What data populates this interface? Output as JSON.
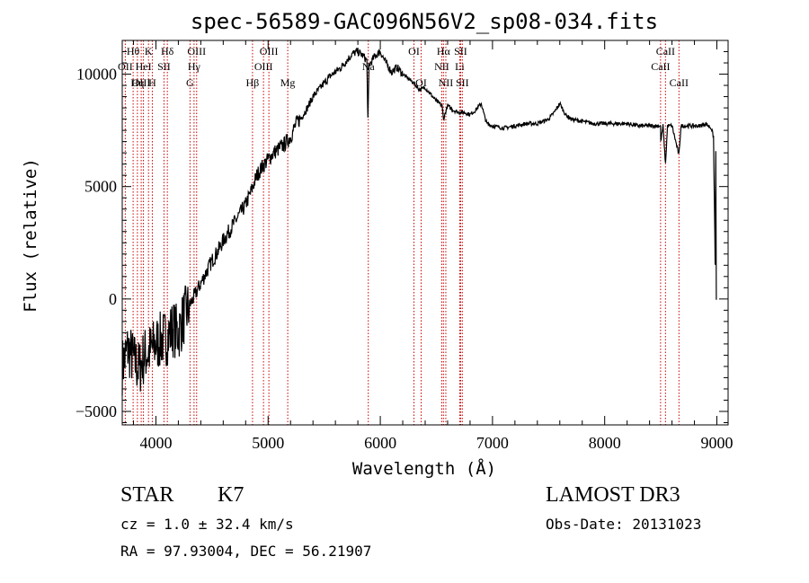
{
  "chart_data": {
    "type": "line",
    "title": "spec-56589-GAC096N56V2_sp08-034.fits",
    "xlabel": "Wavelength (Å)",
    "ylabel": "Flux (relative)",
    "xlim": [
      3700,
      9100
    ],
    "ylim": [
      -5600,
      11500
    ],
    "xticks": [
      4000,
      5000,
      6000,
      7000,
      8000,
      9000
    ],
    "xtick_labels": [
      "4000",
      "5000",
      "6000",
      "7000",
      "8000",
      "9000"
    ],
    "yticks": [
      -5000,
      0,
      5000,
      10000
    ],
    "ytick_labels": [
      "−5000",
      "0",
      "5000",
      "10000"
    ],
    "series": [
      {
        "name": "flux",
        "points": [
          [
            3700,
            -3000
          ],
          [
            3750,
            -2200
          ],
          [
            3800,
            -2700
          ],
          [
            3850,
            -3100
          ],
          [
            3900,
            -2500
          ],
          [
            3950,
            -2300
          ],
          [
            4000,
            -2000
          ],
          [
            4050,
            -1800
          ],
          [
            4100,
            -1700
          ],
          [
            4150,
            -1300
          ],
          [
            4200,
            -1500
          ],
          [
            4250,
            -800
          ],
          [
            4300,
            -300
          ],
          [
            4350,
            200
          ],
          [
            4400,
            700
          ],
          [
            4450,
            1200
          ],
          [
            4500,
            1700
          ],
          [
            4550,
            2100
          ],
          [
            4600,
            2600
          ],
          [
            4650,
            3000
          ],
          [
            4700,
            3400
          ],
          [
            4750,
            3800
          ],
          [
            4800,
            4200
          ],
          [
            4850,
            4800
          ],
          [
            4900,
            5500
          ],
          [
            4950,
            5900
          ],
          [
            5000,
            6200
          ],
          [
            5050,
            6500
          ],
          [
            5100,
            6700
          ],
          [
            5150,
            6900
          ],
          [
            5200,
            7200
          ],
          [
            5250,
            7800
          ],
          [
            5300,
            8100
          ],
          [
            5350,
            8500
          ],
          [
            5400,
            9000
          ],
          [
            5450,
            9300
          ],
          [
            5500,
            9600
          ],
          [
            5550,
            9900
          ],
          [
            5600,
            10100
          ],
          [
            5650,
            10300
          ],
          [
            5700,
            10600
          ],
          [
            5750,
            10900
          ],
          [
            5800,
            11000
          ],
          [
            5850,
            10800
          ],
          [
            5880,
            10600
          ],
          [
            5890,
            8000
          ],
          [
            5900,
            10400
          ],
          [
            5950,
            10800
          ],
          [
            6000,
            11000
          ],
          [
            6050,
            10500
          ],
          [
            6100,
            10100
          ],
          [
            6150,
            10300
          ],
          [
            6200,
            10000
          ],
          [
            6250,
            9800
          ],
          [
            6300,
            9600
          ],
          [
            6350,
            9300
          ],
          [
            6400,
            9400
          ],
          [
            6450,
            9100
          ],
          [
            6500,
            8800
          ],
          [
            6550,
            8600
          ],
          [
            6563,
            8000
          ],
          [
            6600,
            8600
          ],
          [
            6650,
            8400
          ],
          [
            6700,
            8300
          ],
          [
            6750,
            8300
          ],
          [
            6800,
            8200
          ],
          [
            6850,
            8400
          ],
          [
            6900,
            8700
          ],
          [
            6930,
            8100
          ],
          [
            6950,
            7800
          ],
          [
            7000,
            7700
          ],
          [
            7100,
            7600
          ],
          [
            7200,
            7700
          ],
          [
            7300,
            7800
          ],
          [
            7400,
            7800
          ],
          [
            7500,
            8000
          ],
          [
            7550,
            8300
          ],
          [
            7600,
            8700
          ],
          [
            7650,
            8200
          ],
          [
            7700,
            8000
          ],
          [
            7800,
            7900
          ],
          [
            7900,
            7800
          ],
          [
            8000,
            7800
          ],
          [
            8100,
            7800
          ],
          [
            8200,
            7800
          ],
          [
            8300,
            7700
          ],
          [
            8400,
            7700
          ],
          [
            8498,
            7700
          ],
          [
            8500,
            7000
          ],
          [
            8520,
            7700
          ],
          [
            8542,
            6000
          ],
          [
            8560,
            7700
          ],
          [
            8600,
            7700
          ],
          [
            8662,
            6400
          ],
          [
            8680,
            7700
          ],
          [
            8750,
            7700
          ],
          [
            8800,
            7700
          ],
          [
            8850,
            7700
          ],
          [
            8900,
            7800
          ],
          [
            8950,
            7600
          ],
          [
            8970,
            7200
          ],
          [
            8985,
            1600
          ],
          [
            8990,
            6500
          ],
          [
            8995,
            -40
          ]
        ]
      }
    ],
    "annotations": [
      {
        "label": "Hθ",
        "x": 3797,
        "row": 0
      },
      {
        "label": "OII",
        "x": 3727,
        "row": 1
      },
      {
        "label": "OIII",
        "x": 3869,
        "row": 2
      },
      {
        "label": "K",
        "x": 3934,
        "row": 0
      },
      {
        "label": "HeI",
        "x": 3889,
        "row": 1
      },
      {
        "label": "Hη",
        "x": 3835,
        "row": 2
      },
      {
        "label": "Hδ",
        "x": 4102,
        "row": 0
      },
      {
        "label": "SII",
        "x": 4072,
        "row": 1
      },
      {
        "label": "H",
        "x": 3968,
        "row": 2
      },
      {
        "label": "OIII",
        "x": 4363,
        "row": 0
      },
      {
        "label": "Hγ",
        "x": 4340,
        "row": 1
      },
      {
        "label": "G",
        "x": 4304,
        "row": 2
      },
      {
        "label": "OIII",
        "x": 5007,
        "row": 0
      },
      {
        "label": "OIII",
        "x": 4959,
        "row": 1
      },
      {
        "label": "Hβ",
        "x": 4861,
        "row": 2
      },
      {
        "label": "Mg",
        "x": 5175,
        "row": 2
      },
      {
        "label": "Na",
        "x": 5893,
        "row": 1
      },
      {
        "label": "OI",
        "x": 6300,
        "row": 0
      },
      {
        "label": "OI",
        "x": 6364,
        "row": 2
      },
      {
        "label": "Hα",
        "x": 6563,
        "row": 0
      },
      {
        "label": "SII",
        "x": 6716,
        "row": 0
      },
      {
        "label": "NII",
        "x": 6548,
        "row": 1
      },
      {
        "label": "Li",
        "x": 6708,
        "row": 1
      },
      {
        "label": "NII",
        "x": 6584,
        "row": 2
      },
      {
        "label": "SII",
        "x": 6731,
        "row": 2
      },
      {
        "label": "CaII",
        "x": 8542,
        "row": 0
      },
      {
        "label": "CaII",
        "x": 8498,
        "row": 1
      },
      {
        "label": "CaII",
        "x": 8662,
        "row": 2
      }
    ]
  },
  "footer": {
    "object_class": "STAR",
    "subclass": "K7",
    "survey": "LAMOST DR3",
    "cz": "cz = 1.0 ± 32.4 km/s",
    "obs_date": "Obs-Date: 20131023",
    "coords": "RA =  97.93004, DEC =  56.21907"
  },
  "colors": {
    "spectrum": "#000000",
    "marker_lines": "#cc0000"
  }
}
